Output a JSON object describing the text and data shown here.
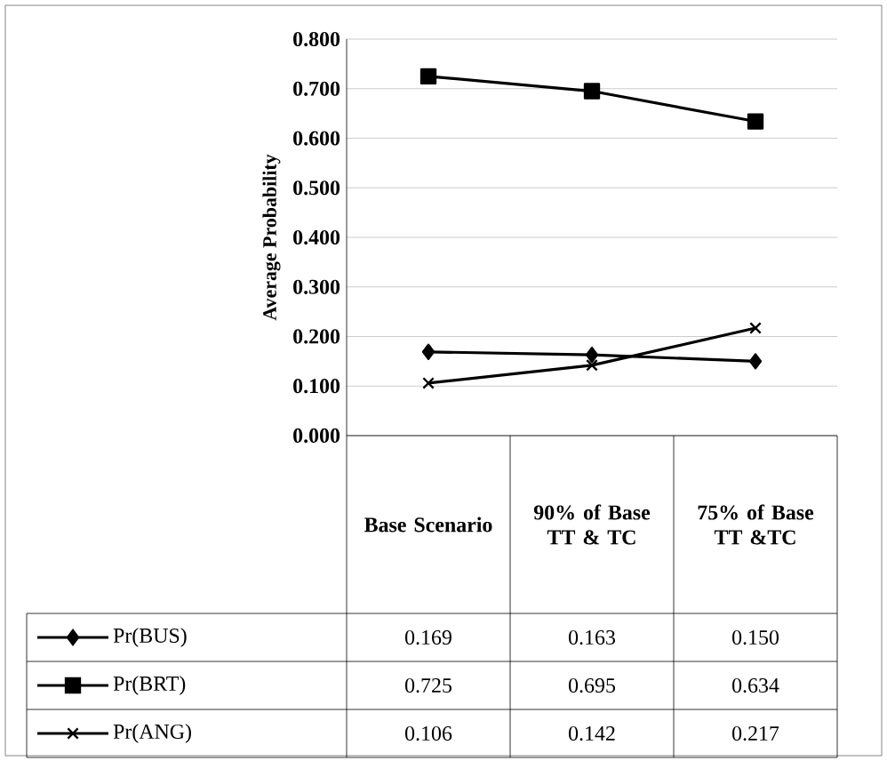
{
  "chart_data": {
    "type": "line",
    "ylabel": "Average Probability",
    "categories": [
      "Base Scenario",
      "90% of Base TT & TC",
      "75% of Base TT &TC"
    ],
    "series": [
      {
        "name": "Pr(BUS)",
        "color": "#000000",
        "marker": "diamond",
        "values": [
          0.169,
          0.163,
          0.15
        ],
        "value_labels": [
          "0.169",
          "0.163",
          "0.150"
        ]
      },
      {
        "name": "Pr(BRT)",
        "color": "#000000",
        "marker": "square",
        "values": [
          0.725,
          0.695,
          0.634
        ],
        "value_labels": [
          "0.725",
          "0.695",
          "0.634"
        ]
      },
      {
        "name": "Pr(ANG)",
        "color": "#000000",
        "marker": "cross",
        "values": [
          0.106,
          0.142,
          0.217
        ],
        "value_labels": [
          "0.106",
          "0.142",
          "0.217"
        ]
      }
    ],
    "ylim": [
      0,
      0.8
    ],
    "yticks": [
      {
        "value": 0,
        "label": "0.000"
      },
      {
        "value": 0.1,
        "label": "0.100"
      },
      {
        "value": 0.2,
        "label": "0.200"
      },
      {
        "value": 0.3,
        "label": "0.300"
      },
      {
        "value": 0.4,
        "label": "0.400"
      },
      {
        "value": 0.5,
        "label": "0.500"
      },
      {
        "value": 0.6,
        "label": "0.600"
      },
      {
        "value": 0.7,
        "label": "0.700"
      },
      {
        "value": 0.8,
        "label": "0.800"
      }
    ],
    "grid": "y",
    "legend": "bottom",
    "line_style": "solid"
  }
}
